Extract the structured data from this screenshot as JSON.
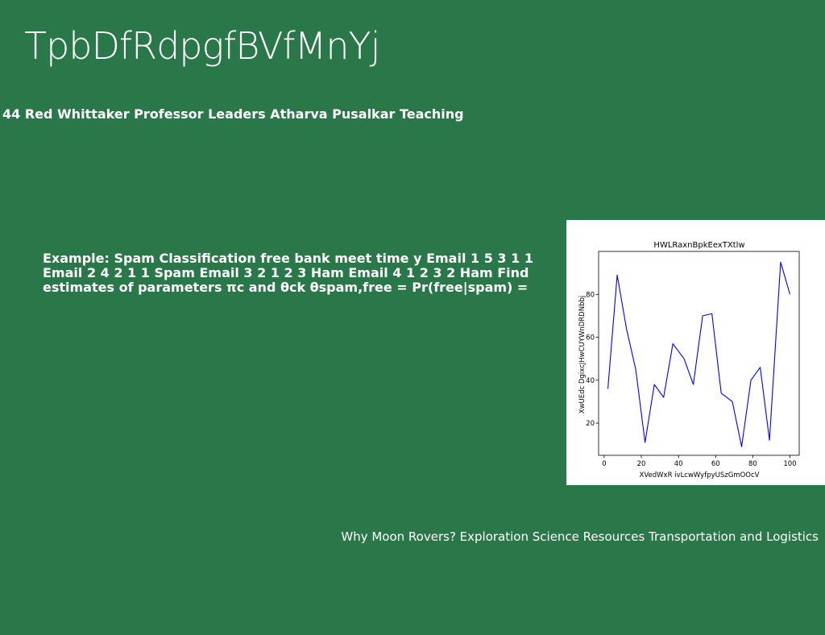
{
  "slide": {
    "title": "TpbDfRdpgfBVfMnYj",
    "subtitle": "44 Red Whittaker Professor Leaders Atharva Pusalkar Teaching",
    "body": "Example: Spam Classification free bank meet time y Email 1 5 3 1 1 Email 2 4 2 1 1 Spam Email 3 2 1 2 3 Ham Email 4 1 2 3 2 Ham Find estimates of parameters πc and θck θspam,free = Pr(free|spam) =",
    "footer": "Why Moon Rovers? Exploration Science Resources Transportation and Logistics"
  },
  "chart_data": {
    "type": "line",
    "title": "HWLRaxnBpkEexTXtlw",
    "xlabel": "XVedWxR ivLcwWyfpyUSzGmOOcV",
    "ylabel": "XwUEdc DgixcJHwCUYWnDRDNbbj",
    "x": [
      2,
      7,
      12,
      17,
      22,
      27,
      32,
      37,
      43,
      48,
      53,
      58,
      63,
      69,
      74,
      79,
      84,
      89,
      95,
      100
    ],
    "series": [
      {
        "values": [
          36,
          89,
          64,
          45,
          11,
          38,
          32,
          57,
          50,
          38,
          70,
          71,
          34,
          30,
          9,
          40,
          46,
          12,
          95,
          80
        ]
      }
    ],
    "xlim": [
      -3,
      105
    ],
    "ylim": [
      5,
      100
    ],
    "xticks": [
      0,
      20,
      40,
      60,
      80,
      100
    ],
    "yticks": [
      20,
      40,
      60,
      80
    ],
    "line_color": "#0000ff",
    "grid": false
  }
}
